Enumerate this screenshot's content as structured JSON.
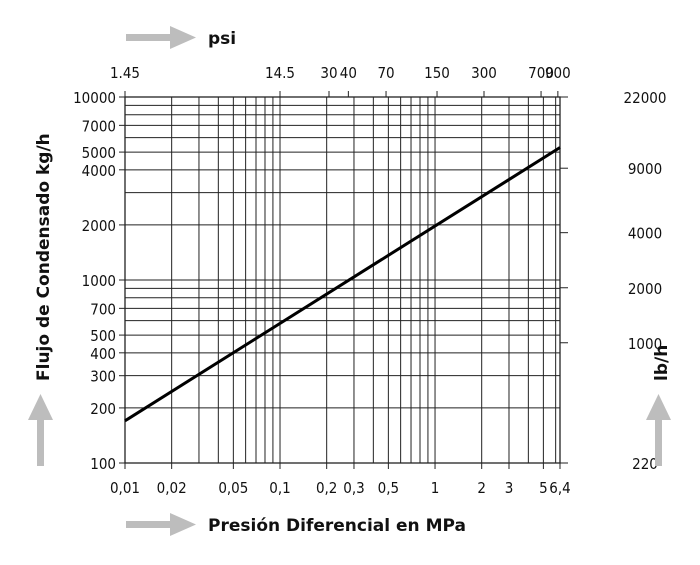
{
  "chart_data": {
    "type": "line",
    "x_scale": "log",
    "y_scale": "log",
    "xlabel": "Presión Diferencial en MPa",
    "ylabel": "Flujo de Condensado kg/h",
    "x2label": "psi",
    "y2label": "lb/h",
    "xlim": [
      0.01,
      6.4
    ],
    "ylim": [
      100,
      10000
    ],
    "grid": true,
    "x_ticks": [
      {
        "v": 0.01,
        "label": "0,01"
      },
      {
        "v": 0.02,
        "label": "0,02"
      },
      {
        "v": 0.05,
        "label": "0,05"
      },
      {
        "v": 0.1,
        "label": "0,1"
      },
      {
        "v": 0.2,
        "label": "0,2"
      },
      {
        "v": 0.3,
        "label": "0,3"
      },
      {
        "v": 0.5,
        "label": "0,5"
      },
      {
        "v": 1,
        "label": "1"
      },
      {
        "v": 2,
        "label": "2"
      },
      {
        "v": 3,
        "label": "3"
      },
      {
        "v": 5,
        "label": "5"
      },
      {
        "v": 6.4,
        "label": "6,4"
      }
    ],
    "x_grid": [
      0.01,
      0.02,
      0.03,
      0.04,
      0.05,
      0.06,
      0.07,
      0.08,
      0.09,
      0.1,
      0.2,
      0.3,
      0.4,
      0.5,
      0.6,
      0.7,
      0.8,
      0.9,
      1,
      2,
      3,
      4,
      5,
      6,
      6.4
    ],
    "y_ticks": [
      {
        "v": 100,
        "label": "100"
      },
      {
        "v": 200,
        "label": "200"
      },
      {
        "v": 300,
        "label": "300"
      },
      {
        "v": 400,
        "label": "400"
      },
      {
        "v": 500,
        "label": "500"
      },
      {
        "v": 700,
        "label": "700"
      },
      {
        "v": 1000,
        "label": "1000"
      },
      {
        "v": 2000,
        "label": "2000"
      },
      {
        "v": 4000,
        "label": "4000"
      },
      {
        "v": 5000,
        "label": "5000"
      },
      {
        "v": 7000,
        "label": "7000"
      },
      {
        "v": 10000,
        "label": "10000"
      }
    ],
    "y_grid": [
      100,
      200,
      300,
      400,
      500,
      600,
      700,
      800,
      900,
      1000,
      2000,
      3000,
      4000,
      5000,
      6000,
      7000,
      8000,
      9000,
      10000
    ],
    "x2_ticks": [
      {
        "v": 0.01,
        "label": "1.45"
      },
      {
        "v": 0.1,
        "label": "14.5"
      },
      {
        "v": 0.207,
        "label": "30"
      },
      {
        "v": 0.276,
        "label": "40"
      },
      {
        "v": 0.483,
        "label": "70"
      },
      {
        "v": 1.03,
        "label": "150"
      },
      {
        "v": 2.07,
        "label": "300"
      },
      {
        "v": 4.83,
        "label": "700"
      },
      {
        "v": 6.2,
        "label": "900"
      }
    ],
    "y2_ticks": [
      {
        "v": 100,
        "label": "220"
      },
      {
        "v": 454,
        "label": "1000"
      },
      {
        "v": 907,
        "label": "2000"
      },
      {
        "v": 1814,
        "label": "4000"
      },
      {
        "v": 4082,
        "label": "9000"
      },
      {
        "v": 10000,
        "label": "22000"
      }
    ],
    "series": [
      {
        "x": [
          0.01,
          6.4
        ],
        "y": [
          170,
          5300
        ]
      }
    ]
  }
}
